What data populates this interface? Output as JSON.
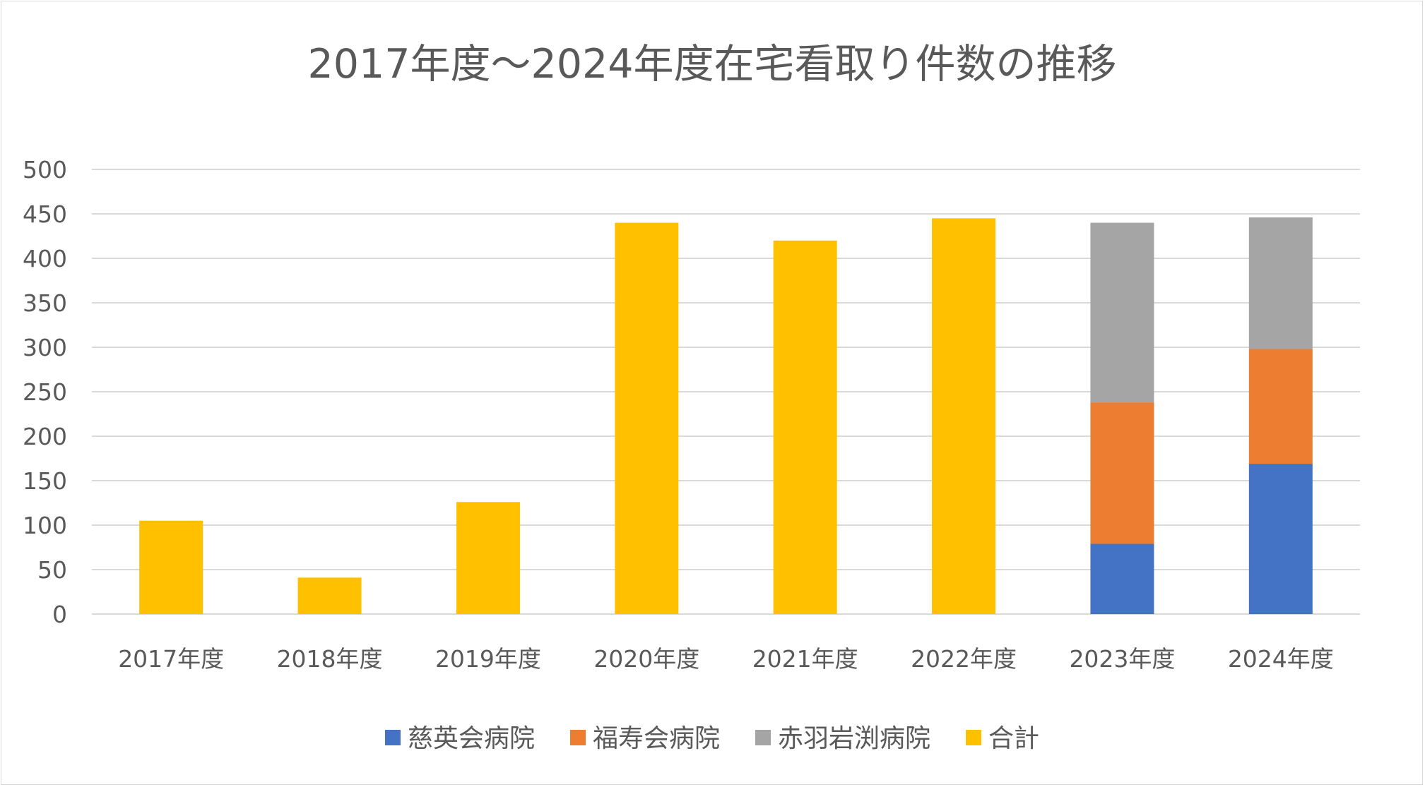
{
  "chart_data": {
    "type": "bar",
    "stacked": true,
    "title": "2017年度～2024年度在宅看取り件数の推移",
    "xlabel": "",
    "ylabel": "",
    "categories": [
      "2017年度",
      "2018年度",
      "2019年度",
      "2020年度",
      "2021年度",
      "2022年度",
      "2023年度",
      "2024年度"
    ],
    "ylim": [
      0,
      500
    ],
    "yticks": [
      0,
      50,
      100,
      150,
      200,
      250,
      300,
      350,
      400,
      450,
      500
    ],
    "grid": true,
    "legend_position": "bottom",
    "series": [
      {
        "name": "慈英会病院",
        "color": "#4472C4",
        "values": [
          null,
          null,
          null,
          null,
          null,
          null,
          79,
          169
        ]
      },
      {
        "name": "福寿会病院",
        "color": "#ED7D31",
        "values": [
          null,
          null,
          null,
          null,
          null,
          null,
          159,
          129
        ]
      },
      {
        "name": "赤羽岩渕病院",
        "color": "#A5A5A5",
        "values": [
          null,
          null,
          null,
          null,
          null,
          null,
          202,
          148
        ]
      },
      {
        "name": "合計",
        "color": "#FFC000",
        "values": [
          105,
          41,
          126,
          440,
          420,
          445,
          null,
          null
        ]
      }
    ]
  }
}
